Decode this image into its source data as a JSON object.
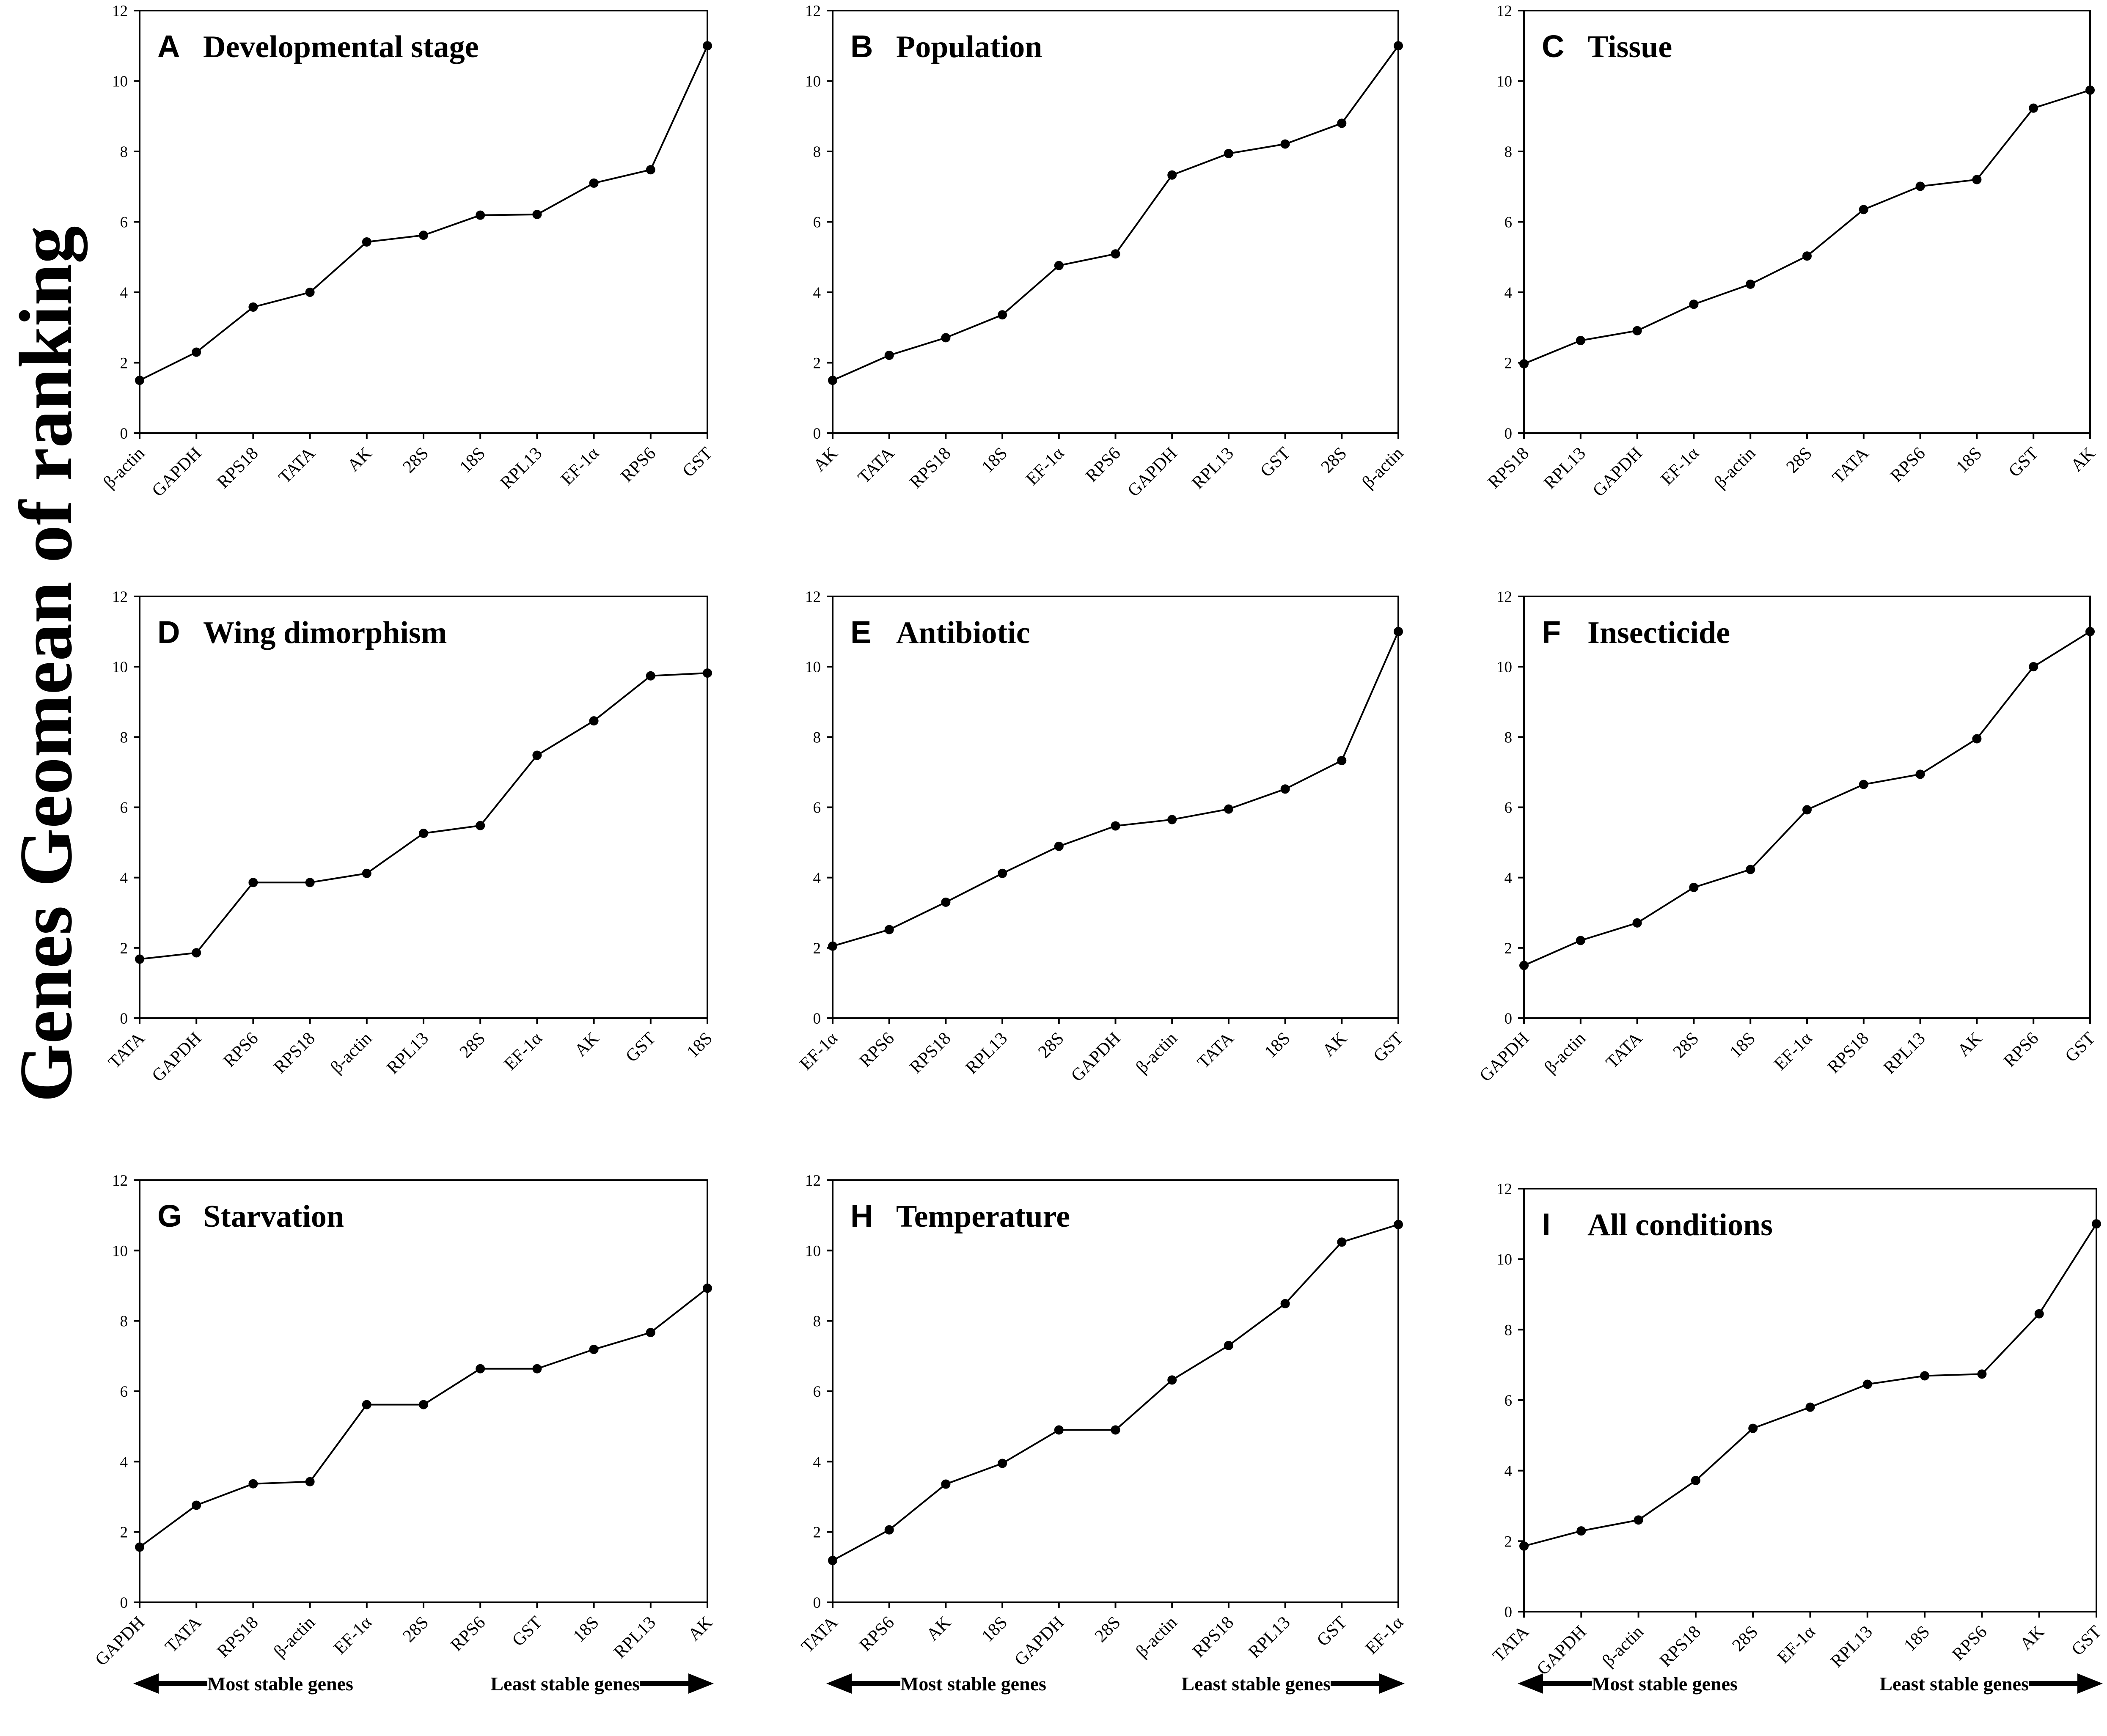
{
  "y_axis_label": "Genes Geomean of ranking",
  "chart_data": [
    {
      "panel": "A",
      "type": "line",
      "title": "Developmental stage",
      "ylim": [
        0,
        12
      ],
      "yticks": [
        0,
        2,
        4,
        6,
        8,
        10,
        12
      ],
      "categories": [
        "β-actin",
        "GAPDH",
        "RPS18",
        "TATA",
        "AK",
        "28S",
        "18S",
        "RPL13",
        "EF-1α",
        "RPS6",
        "GST"
      ],
      "values": [
        1.5,
        2.3,
        3.58,
        4.0,
        5.43,
        5.62,
        6.19,
        6.21,
        7.1,
        7.48,
        11.0
      ]
    },
    {
      "panel": "B",
      "type": "line",
      "title": "Population",
      "ylim": [
        0,
        12
      ],
      "yticks": [
        0,
        2,
        4,
        6,
        8,
        10,
        12
      ],
      "categories": [
        "AK",
        "TATA",
        "RPS18",
        "18S",
        "EF-1α",
        "RPS6",
        "GAPDH",
        "RPL13",
        "GST",
        "28S",
        "β-actin"
      ],
      "values": [
        1.5,
        2.21,
        2.71,
        3.36,
        4.76,
        5.09,
        7.33,
        7.94,
        8.21,
        8.8,
        11.0
      ]
    },
    {
      "panel": "C",
      "type": "line",
      "title": "Tissue",
      "ylim": [
        0,
        12
      ],
      "yticks": [
        0,
        2,
        4,
        6,
        8,
        10,
        12
      ],
      "categories": [
        "RPS18",
        "RPL13",
        "GAPDH",
        "EF-1α",
        "β-actin",
        "28S",
        "TATA",
        "RPS6",
        "18S",
        "GST",
        "AK"
      ],
      "values": [
        1.97,
        2.63,
        2.91,
        3.66,
        4.23,
        5.03,
        6.35,
        7.01,
        7.2,
        9.23,
        9.74
      ]
    },
    {
      "panel": "D",
      "type": "line",
      "title": "Wing dimorphism",
      "ylim": [
        0,
        12
      ],
      "yticks": [
        0,
        2,
        4,
        6,
        8,
        10,
        12
      ],
      "categories": [
        "TATA",
        "GAPDH",
        "RPS6",
        "RPS18",
        "β-actin",
        "RPL13",
        "28S",
        "EF-1α",
        "AK",
        "GST",
        "18S"
      ],
      "values": [
        1.68,
        1.86,
        3.86,
        3.86,
        4.12,
        5.26,
        5.48,
        7.48,
        8.46,
        9.74,
        9.82
      ]
    },
    {
      "panel": "E",
      "type": "line",
      "title": "Antibiotic",
      "ylim": [
        0,
        12
      ],
      "yticks": [
        0,
        2,
        4,
        6,
        8,
        10,
        12
      ],
      "categories": [
        "EF-1α",
        "RPS6",
        "RPS18",
        "RPL13",
        "28S",
        "GAPDH",
        "β-actin",
        "TATA",
        "18S",
        "AK",
        "GST"
      ],
      "values": [
        2.05,
        2.52,
        3.3,
        4.12,
        4.89,
        5.47,
        5.65,
        5.95,
        6.52,
        7.33,
        11.0
      ]
    },
    {
      "panel": "F",
      "type": "line",
      "title": "Insecticide",
      "ylim": [
        0,
        12
      ],
      "yticks": [
        0,
        2,
        4,
        6,
        8,
        10,
        12
      ],
      "categories": [
        "GAPDH",
        "β-actin",
        "TATA",
        "28S",
        "18S",
        "EF-1α",
        "RPS18",
        "RPL13",
        "AK",
        "RPS6",
        "GST"
      ],
      "values": [
        1.5,
        2.21,
        2.71,
        3.72,
        4.23,
        5.93,
        6.65,
        6.94,
        7.95,
        10.0,
        11.0
      ]
    },
    {
      "panel": "G",
      "type": "line",
      "title": "Starvation",
      "ylim": [
        0,
        12
      ],
      "yticks": [
        0,
        2,
        4,
        6,
        8,
        10,
        12
      ],
      "categories": [
        "GAPDH",
        "TATA",
        "RPS18",
        "β-actin",
        "EF-1α",
        "28S",
        "RPS6",
        "GST",
        "18S",
        "RPL13",
        "AK"
      ],
      "values": [
        1.57,
        2.76,
        3.37,
        3.43,
        5.62,
        5.62,
        6.64,
        6.64,
        7.19,
        7.67,
        8.93
      ]
    },
    {
      "panel": "H",
      "type": "line",
      "title": "Temperature",
      "ylim": [
        0,
        12
      ],
      "yticks": [
        0,
        2,
        4,
        6,
        8,
        10,
        12
      ],
      "categories": [
        "TATA",
        "RPS6",
        "AK",
        "18S",
        "GAPDH",
        "28S",
        "β-actin",
        "RPS18",
        "RPL13",
        "GST",
        "EF-1α"
      ],
      "values": [
        1.19,
        2.06,
        3.36,
        3.95,
        4.9,
        4.9,
        6.32,
        7.3,
        8.49,
        10.24,
        10.74
      ]
    },
    {
      "panel": "I",
      "type": "line",
      "title": "All conditions",
      "ylim": [
        0,
        12
      ],
      "yticks": [
        0,
        2,
        4,
        6,
        8,
        10,
        12
      ],
      "categories": [
        "TATA",
        "GAPDH",
        "β-actin",
        "RPS18",
        "28S",
        "EF-1α",
        "RPL13",
        "18S",
        "RPS6",
        "AK",
        "GST"
      ],
      "values": [
        1.86,
        2.29,
        2.6,
        3.72,
        5.2,
        5.8,
        6.45,
        6.69,
        6.74,
        8.45,
        11.0
      ]
    }
  ],
  "stability_labels": {
    "most": "Most stable genes",
    "least": "Least stable genes"
  }
}
